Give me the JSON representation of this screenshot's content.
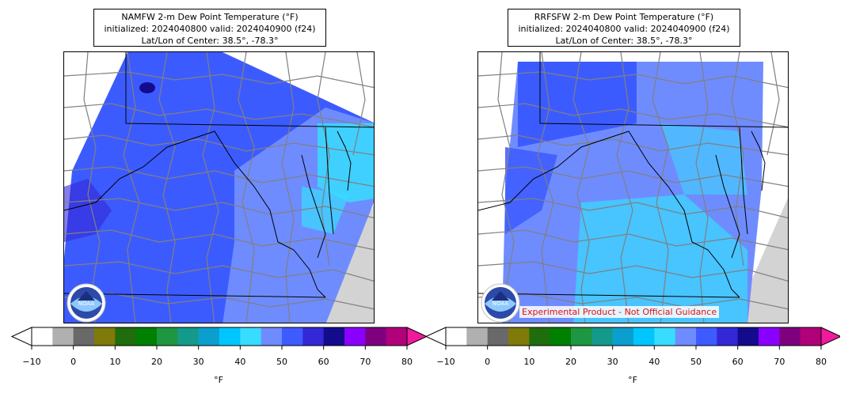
{
  "panels": [
    {
      "title_line1": "NAMFW 2-m Dew Point Temperature (°F)",
      "title_line2": "initialized: 2024040800 valid: 2024040900 (f24)",
      "title_line3": "Lat/Lon of Center: 38.5°, -78.3°"
    },
    {
      "title_line1": "RRFSFW 2-m Dew Point Temperature (°F)",
      "title_line2": "initialized: 2024040800 valid: 2024040900 (f24)",
      "title_line3": "Lat/Lon of Center: 38.5°, -78.3°"
    }
  ],
  "colorbar": {
    "ticks": [
      "−10",
      "0",
      "10",
      "20",
      "30",
      "40",
      "50",
      "60",
      "70",
      "80"
    ],
    "unit": "°F",
    "colors": [
      "#ffffff",
      "#b0b0b0",
      "#696969",
      "#7f7a0a",
      "#1f6d0c",
      "#008000",
      "#1f9641",
      "#149a8a",
      "#0b9fd0",
      "#00c6ff",
      "#38dcff",
      "#6f8cff",
      "#3e5bff",
      "#3328d6",
      "#140b8c",
      "#8a00ff",
      "#7f007f",
      "#b0007a",
      "#f01a9c"
    ]
  },
  "map_colors": {
    "fill_dark": "#3c5bff",
    "fill_mid": "#6f8cff",
    "fill_cyan": "#38dcff",
    "fill_navy": "#140b8c",
    "land_gray": "#d3d3d3",
    "county_line": "#808080",
    "state_line": "#000000"
  },
  "watermark": "Experimental Product - Not Official Guidance",
  "logo_text": "NOAA"
}
